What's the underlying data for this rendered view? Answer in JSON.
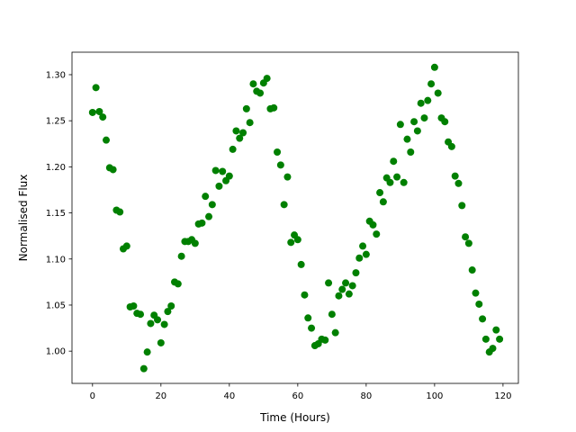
{
  "chart_data": {
    "type": "scatter",
    "x_label": "Time (Hours)",
    "y_label": "Normalised Flux",
    "color": "#008000",
    "x": [
      0,
      1,
      2,
      3,
      4,
      5,
      6,
      7,
      8,
      9,
      10,
      11,
      12,
      13,
      14,
      15,
      16,
      17,
      18,
      19,
      20,
      21,
      22,
      23,
      24,
      25,
      26,
      27,
      28,
      29,
      30,
      31,
      32,
      33,
      34,
      35,
      36,
      37,
      38,
      39,
      40,
      41,
      42,
      43,
      44,
      45,
      46,
      47,
      48,
      49,
      50,
      51,
      52,
      53,
      54,
      55,
      56,
      57,
      58,
      59,
      60,
      61,
      62,
      63,
      64,
      65,
      66,
      67,
      68,
      69,
      70,
      71,
      72,
      73,
      74,
      75,
      76,
      77,
      78,
      79,
      80,
      81,
      82,
      83,
      84,
      85,
      86,
      87,
      88,
      89,
      90,
      91,
      92,
      93,
      94,
      95,
      96,
      97,
      98,
      99,
      100,
      101,
      102,
      103,
      104,
      105,
      106,
      107,
      108,
      109,
      110,
      111,
      112,
      113,
      114,
      115,
      116,
      117,
      118,
      119
    ],
    "values": [
      1.259,
      1.286,
      1.26,
      1.254,
      1.229,
      1.199,
      1.197,
      1.153,
      1.151,
      1.111,
      1.114,
      1.048,
      1.049,
      1.041,
      1.04,
      0.981,
      0.999,
      1.03,
      1.039,
      1.034,
      1.009,
      1.029,
      1.043,
      1.049,
      1.075,
      1.073,
      1.103,
      1.119,
      1.119,
      1.121,
      1.117,
      1.138,
      1.139,
      1.168,
      1.146,
      1.159,
      1.196,
      1.179,
      1.195,
      1.185,
      1.19,
      1.219,
      1.239,
      1.231,
      1.237,
      1.263,
      1.248,
      1.29,
      1.282,
      1.28,
      1.291,
      1.296,
      1.263,
      1.264,
      1.216,
      1.202,
      1.159,
      1.189,
      1.118,
      1.126,
      1.121,
      1.094,
      1.061,
      1.036,
      1.025,
      1.006,
      1.008,
      1.013,
      1.012,
      1.074,
      1.04,
      1.02,
      1.06,
      1.067,
      1.074,
      1.062,
      1.071,
      1.085,
      1.101,
      1.114,
      1.105,
      1.141,
      1.137,
      1.127,
      1.172,
      1.162,
      1.188,
      1.183,
      1.206,
      1.189,
      1.246,
      1.183,
      1.23,
      1.216,
      1.249,
      1.239,
      1.269,
      1.253,
      1.272,
      1.29,
      1.308,
      1.28,
      1.253,
      1.249,
      1.227,
      1.222,
      1.19,
      1.182,
      1.158,
      1.124,
      1.117,
      1.088,
      1.063,
      1.051,
      1.035,
      1.013,
      0.999,
      1.003,
      1.023,
      1.013
    ],
    "xlim": [
      -6,
      124.5
    ],
    "ylim": [
      0.965,
      1.3244
    ],
    "xticks": [
      0,
      20,
      40,
      60,
      80,
      100,
      120
    ],
    "yticks": [
      {
        "value": 1.0,
        "label": "1.00"
      },
      {
        "value": 1.05,
        "label": "1.05"
      },
      {
        "value": 1.1,
        "label": "1.10"
      },
      {
        "value": 1.15,
        "label": "1.15"
      },
      {
        "value": 1.2,
        "label": "1.20"
      },
      {
        "value": 1.25,
        "label": "1.25"
      },
      {
        "value": 1.3,
        "label": "1.30"
      }
    ]
  }
}
